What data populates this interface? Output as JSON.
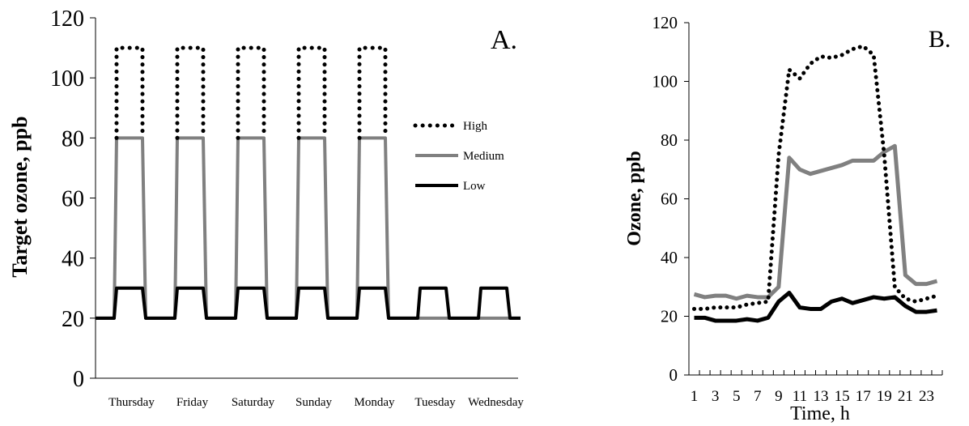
{
  "chart_data": [
    {
      "type": "line",
      "panel_label": "A.",
      "ylabel": "Target ozone, ppb",
      "xlabel": "",
      "ylim": [
        0,
        120
      ],
      "yticks": [
        "0",
        "20",
        "40",
        "60",
        "80",
        "100",
        "120"
      ],
      "categories": [
        "Thursday",
        "Friday",
        "Saturday",
        "Sunday",
        "Monday",
        "Tuesday",
        "Wednesday"
      ],
      "legend": {
        "position": "right",
        "entries": [
          "High",
          "Medium",
          "Low"
        ]
      },
      "series": [
        {
          "name": "High",
          "style": "dotted",
          "color": "#000000",
          "base": 20,
          "peak": 110,
          "peak_days": [
            0,
            1,
            2,
            3,
            4
          ]
        },
        {
          "name": "Medium",
          "style": "solid",
          "color": "#808080",
          "base": 20,
          "peak": 80,
          "peak_days": [
            0,
            1,
            2,
            3,
            4
          ]
        },
        {
          "name": "Low",
          "style": "solid",
          "color": "#000000",
          "base": 20,
          "peak": 30,
          "peak_days": [
            0,
            1,
            2,
            3,
            4,
            5,
            6
          ]
        }
      ]
    },
    {
      "type": "line",
      "panel_label": "B.",
      "ylabel": "Ozone, ppb",
      "xlabel": "Time, h",
      "ylim": [
        0,
        120
      ],
      "yticks": [
        "0",
        "20",
        "40",
        "60",
        "80",
        "100",
        "120"
      ],
      "x": [
        1,
        2,
        3,
        4,
        5,
        6,
        7,
        8,
        9,
        10,
        11,
        12,
        13,
        14,
        15,
        16,
        17,
        18,
        19,
        20,
        21,
        22,
        23,
        24
      ],
      "xtick_labels": [
        "1",
        "3",
        "5",
        "7",
        "9",
        "11",
        "13",
        "15",
        "17",
        "19",
        "21",
        "23"
      ],
      "series": [
        {
          "name": "High",
          "style": "dotted",
          "color": "#000000",
          "values": [
            22.5,
            22.5,
            23,
            23,
            23,
            24,
            24.5,
            25,
            75,
            104,
            101,
            106,
            108.5,
            108,
            109,
            111,
            112,
            109,
            75,
            30,
            26,
            25,
            26,
            27
          ]
        },
        {
          "name": "Medium",
          "style": "solid",
          "color": "#808080",
          "values": [
            27.5,
            26.5,
            27,
            27,
            26,
            27,
            26.5,
            26.5,
            30,
            74,
            70,
            68.5,
            69.5,
            70.5,
            71.5,
            73,
            73,
            73,
            76,
            78,
            34,
            31,
            31,
            32
          ]
        },
        {
          "name": "Low",
          "style": "solid",
          "color": "#000000",
          "values": [
            19.5,
            19.5,
            18.5,
            18.5,
            18.5,
            19,
            18.5,
            19.5,
            25,
            28,
            23,
            22.5,
            22.5,
            25,
            26,
            24.5,
            25.5,
            26.5,
            26,
            26.5,
            23.5,
            21.5,
            21.5,
            22
          ]
        }
      ]
    }
  ]
}
